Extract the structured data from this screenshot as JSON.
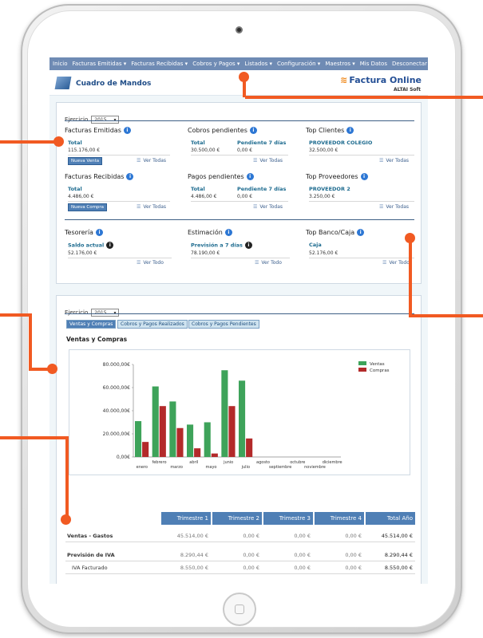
{
  "nav": [
    "Inicio",
    "Facturas Emitidas ▾",
    "Facturas Recibidas ▾",
    "Cobros y Pagos ▾",
    "Listados ▾",
    "Configuración ▾",
    "Maestros ▾",
    "Mis Datos",
    "Desconectar"
  ],
  "header": {
    "title": "Cuadro de Mandos",
    "brand": "Factura Online",
    "brand_sub": "ALTAI Soft"
  },
  "ejercicio": {
    "label": "Ejercicio",
    "year": "2015"
  },
  "emitidas": {
    "title": "Facturas Emitidas",
    "total_label": "Total",
    "total": "115.176,00 €",
    "button": "Nueva Venta",
    "link": "Ver Todas"
  },
  "recibidas": {
    "title": "Facturas Recibidas",
    "total_label": "Total",
    "total": "4.486,00 €",
    "button": "Nueva Compra",
    "link": "Ver Todas"
  },
  "cobros": {
    "title": "Cobros pendientes",
    "total_label": "Total",
    "total": "30.500,00 €",
    "pend_label": "Pendiente 7 días",
    "pend": "0,00 €",
    "link": "Ver Todas"
  },
  "pagos": {
    "title": "Pagos pendientes",
    "total_label": "Total",
    "total": "4.486,00 €",
    "pend_label": "Pendiente 7 días",
    "pend": "0,00 €",
    "link": "Ver Todas"
  },
  "top_clientes": {
    "title": "Top Clientes",
    "name": "PROVEEDOR COLEGIO",
    "amount": "32.500,00 €",
    "link": "Ver Todas"
  },
  "top_proveedores": {
    "title": "Top Proveedores",
    "name": "PROVEEDOR 2",
    "amount": "3.250,00 €",
    "link": "Ver Todas"
  },
  "tesoreria": {
    "title": "Tesorería",
    "label": "Saldo actual",
    "amount": "52.176,00 €",
    "link": "Ver Todo"
  },
  "estimacion": {
    "title": "Estimación",
    "label": "Previsión a 7 días",
    "amount": "78.190,00 €",
    "link": "Ver Todo"
  },
  "topbanco": {
    "title": "Top Banco/Caja",
    "label": "Caja",
    "amount": "52.176,00 €",
    "link": "Ver Todo"
  },
  "ejercicio2": {
    "label": "Ejercicio",
    "year": "2015"
  },
  "tabs": [
    "Ventas y Compras",
    "Cobros y Pagos Realizados",
    "Cobros y Pagos Pendientes"
  ],
  "chart_section_title": "Ventas y Compras",
  "chart_data": {
    "type": "bar",
    "categories": [
      "enero",
      "febrero",
      "marzo",
      "abril",
      "mayo",
      "junio",
      "julio",
      "agosto",
      "septiembre",
      "octubre",
      "noviembre",
      "diciembre"
    ],
    "series": [
      {
        "name": "Ventas",
        "color": "#3ea35a",
        "values": [
          31000,
          61000,
          48000,
          28000,
          30000,
          75000,
          66000,
          0,
          0,
          0,
          0,
          0
        ]
      },
      {
        "name": "Compras",
        "color": "#b32a2a",
        "values": [
          13000,
          44000,
          25000,
          7500,
          3000,
          44000,
          16000,
          0,
          0,
          0,
          0,
          0
        ]
      }
    ],
    "y_ticks": [
      "80.000,00€",
      "60.000,00€",
      "40.000,00€",
      "20.000,00€",
      "0,00€"
    ],
    "ylim": [
      0,
      80000
    ],
    "legend": "top-right"
  },
  "table": {
    "headers": [
      "Trimestre 1",
      "Trimestre 2",
      "Trimestre 3",
      "Trimestre 4",
      "Total Año"
    ],
    "rows": [
      {
        "label": "Ventas - Gastos",
        "bold": true,
        "values": [
          "45.514,00 €",
          "0,00 €",
          "0,00 €",
          "0,00 €",
          "45.514,00 €"
        ]
      },
      {
        "label": "Previsión de IVA",
        "bold": true,
        "values": [
          "8.290,44 €",
          "0,00 €",
          "0,00 €",
          "0,00 €",
          "8.290,44 €"
        ]
      },
      {
        "label": "IVA Facturado",
        "bold": false,
        "values": [
          "8.550,00 €",
          "0,00 €",
          "0,00 €",
          "0,00 €",
          "8.550,00 €"
        ]
      }
    ]
  }
}
